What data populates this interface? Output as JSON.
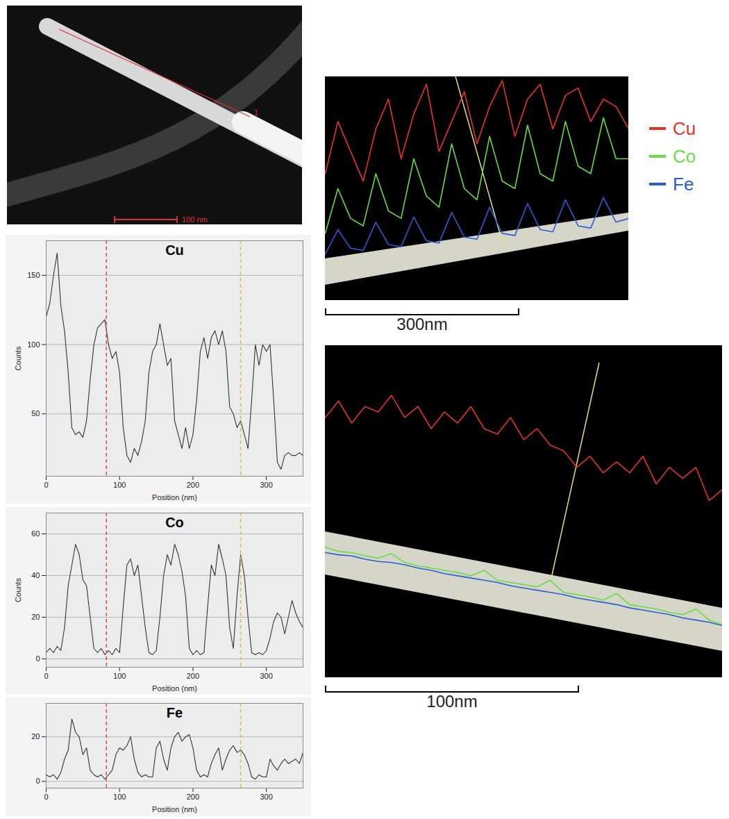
{
  "chart_data": [
    {
      "type": "line",
      "title": "Cu",
      "x_label": "Position (nm)",
      "y_label": "Counts",
      "color": "#333333",
      "x": [
        0,
        5,
        10,
        15,
        20,
        25,
        30,
        35,
        40,
        45,
        50,
        55,
        60,
        65,
        70,
        75,
        80,
        85,
        90,
        95,
        100,
        105,
        110,
        115,
        120,
        125,
        130,
        135,
        140,
        145,
        150,
        155,
        160,
        165,
        170,
        175,
        180,
        185,
        190,
        195,
        200,
        205,
        210,
        215,
        220,
        225,
        230,
        235,
        240,
        245,
        250,
        255,
        260,
        265,
        270,
        275,
        280,
        285,
        290,
        295,
        300,
        305,
        310,
        315,
        320,
        325,
        330,
        335,
        340,
        345,
        350
      ],
      "values": [
        120,
        130,
        150,
        166,
        128,
        110,
        80,
        40,
        35,
        37,
        33,
        45,
        75,
        100,
        112,
        115,
        118,
        100,
        90,
        95,
        80,
        40,
        20,
        15,
        25,
        20,
        30,
        45,
        80,
        95,
        100,
        115,
        100,
        85,
        90,
        45,
        35,
        25,
        40,
        25,
        35,
        60,
        95,
        105,
        90,
        105,
        110,
        100,
        110,
        95,
        55,
        50,
        40,
        45,
        35,
        25,
        60,
        100,
        85,
        100,
        95,
        100,
        60,
        15,
        10,
        20,
        22,
        20,
        20,
        22,
        20
      ],
      "xlim": [
        0,
        350
      ],
      "xticks": [
        0,
        100,
        200,
        300
      ],
      "ylim": [
        5,
        175
      ],
      "yticks": [
        50,
        100,
        150
      ],
      "grid": true,
      "vlines": [
        {
          "x": 82,
          "color": "#e0443c",
          "line_style": "dashed"
        },
        {
          "x": 265,
          "color": "#e8b830",
          "line_style": "dashed"
        }
      ]
    },
    {
      "type": "line",
      "title": "Co",
      "x_label": "Position (nm)",
      "y_label": "Counts",
      "color": "#333333",
      "x": [
        0,
        5,
        10,
        15,
        20,
        25,
        30,
        35,
        40,
        45,
        50,
        55,
        60,
        65,
        70,
        75,
        80,
        85,
        90,
        95,
        100,
        105,
        110,
        115,
        120,
        125,
        130,
        135,
        140,
        145,
        150,
        155,
        160,
        165,
        170,
        175,
        180,
        185,
        190,
        195,
        200,
        205,
        210,
        215,
        220,
        225,
        230,
        235,
        240,
        245,
        250,
        255,
        260,
        265,
        270,
        275,
        280,
        285,
        290,
        295,
        300,
        305,
        310,
        315,
        320,
        325,
        330,
        335,
        340,
        345,
        350
      ],
      "values": [
        3,
        5,
        3,
        6,
        4,
        15,
        35,
        45,
        55,
        50,
        38,
        35,
        20,
        5,
        3,
        5,
        2,
        4,
        2,
        5,
        3,
        25,
        45,
        48,
        40,
        45,
        30,
        15,
        3,
        2,
        4,
        20,
        40,
        50,
        45,
        55,
        50,
        42,
        30,
        5,
        2,
        4,
        2,
        3,
        25,
        45,
        40,
        55,
        48,
        40,
        15,
        5,
        30,
        50,
        40,
        20,
        3,
        2,
        3,
        2,
        4,
        10,
        18,
        22,
        20,
        12,
        20,
        28,
        22,
        18,
        15
      ],
      "xlim": [
        0,
        350
      ],
      "xticks": [
        0,
        100,
        200,
        300
      ],
      "ylim": [
        -4,
        70
      ],
      "yticks": [
        0,
        20,
        40,
        60
      ],
      "grid": true,
      "vlines": [
        {
          "x": 82,
          "color": "#e0443c",
          "line_style": "dashed"
        },
        {
          "x": 265,
          "color": "#e8b830",
          "line_style": "dashed"
        }
      ]
    },
    {
      "type": "line",
      "title": "Fe",
      "x_label": "Position (nm)",
      "color": "#333333",
      "x": [
        0,
        5,
        10,
        15,
        20,
        25,
        30,
        35,
        40,
        45,
        50,
        55,
        60,
        65,
        70,
        75,
        80,
        85,
        90,
        95,
        100,
        105,
        110,
        115,
        120,
        125,
        130,
        135,
        140,
        145,
        150,
        155,
        160,
        165,
        170,
        175,
        180,
        185,
        190,
        195,
        200,
        205,
        210,
        215,
        220,
        225,
        230,
        235,
        240,
        245,
        250,
        255,
        260,
        265,
        270,
        275,
        280,
        285,
        290,
        295,
        300,
        305,
        310,
        315,
        320,
        325,
        330,
        335,
        340,
        345,
        350
      ],
      "values": [
        3,
        2,
        3,
        1,
        4,
        10,
        14,
        28,
        22,
        20,
        12,
        15,
        5,
        3,
        2,
        3,
        1,
        3,
        5,
        12,
        15,
        14,
        16,
        20,
        10,
        4,
        2,
        3,
        2,
        2,
        15,
        18,
        10,
        5,
        15,
        20,
        22,
        18,
        20,
        21,
        15,
        5,
        2,
        3,
        2,
        8,
        12,
        15,
        5,
        10,
        14,
        16,
        13,
        14,
        12,
        8,
        2,
        1,
        3,
        2,
        2,
        10,
        7,
        5,
        8,
        10,
        8,
        9,
        10,
        8,
        13
      ],
      "xlim": [
        0,
        350
      ],
      "xticks": [
        0,
        100,
        200,
        300
      ],
      "ylim": [
        -3,
        35
      ],
      "yticks": [
        0,
        20
      ],
      "grid": true,
      "vlines": [
        {
          "x": 82,
          "color": "#e0443c",
          "line_style": "dashed"
        },
        {
          "x": 265,
          "color": "#e8b830",
          "line_style": "dashed"
        }
      ]
    },
    {
      "type": "line",
      "scale_bar": "300nm",
      "tick_labels": false,
      "legend": "right",
      "x": [
        0,
        1,
        2,
        3,
        4,
        5,
        6,
        7,
        8,
        9,
        10,
        11,
        12,
        13,
        14,
        15,
        16,
        17,
        18,
        19,
        20,
        21,
        22,
        23,
        24
      ],
      "xlim": [
        0,
        24
      ],
      "ylim": [
        0,
        300
      ],
      "series": [
        {
          "name": "Cu",
          "color": "#e8322a",
          "values": [
            170,
            240,
            200,
            160,
            230,
            270,
            190,
            250,
            290,
            200,
            240,
            280,
            210,
            260,
            295,
            220,
            270,
            290,
            230,
            275,
            285,
            240,
            270,
            260,
            230
          ]
        },
        {
          "name": "Co",
          "color": "#66dd44",
          "values": [
            90,
            150,
            110,
            100,
            170,
            120,
            110,
            190,
            140,
            125,
            210,
            150,
            135,
            220,
            160,
            150,
            235,
            170,
            160,
            240,
            180,
            170,
            245,
            190,
            190
          ]
        },
        {
          "name": "Fe",
          "color": "#2a5cd6",
          "values": [
            62,
            95,
            70,
            67,
            105,
            75,
            72,
            112,
            80,
            77,
            118,
            85,
            82,
            125,
            90,
            87,
            130,
            95,
            92,
            135,
            100,
            97,
            138,
            105,
            110
          ]
        }
      ]
    },
    {
      "type": "line",
      "scale_bar": "100nm",
      "tick_labels": false,
      "x": [
        0,
        1,
        2,
        3,
        4,
        5,
        6,
        7,
        8,
        9,
        10,
        11,
        12,
        13,
        14,
        15,
        16,
        17,
        18,
        19,
        20,
        21,
        22,
        23,
        24,
        25,
        26,
        27,
        28,
        29,
        30
      ],
      "xlim": [
        0,
        30
      ],
      "ylim": [
        0,
        300
      ],
      "series": [
        {
          "name": "Cu",
          "color": "#e8322a",
          "values": [
            235,
            250,
            230,
            245,
            240,
            255,
            235,
            245,
            225,
            240,
            230,
            245,
            225,
            220,
            235,
            215,
            225,
            210,
            205,
            190,
            200,
            185,
            195,
            185,
            200,
            175,
            190,
            180,
            190,
            160,
            170
          ]
        },
        {
          "name": "Co",
          "color": "#66dd44",
          "values": [
            118,
            114,
            113,
            110,
            108,
            112,
            104,
            101,
            99,
            97,
            95,
            92,
            97,
            88,
            86,
            84,
            82,
            88,
            77,
            75,
            73,
            70,
            76,
            66,
            64,
            62,
            59,
            57,
            62,
            52,
            48
          ]
        },
        {
          "name": "Fe",
          "color": "#2a5cd6",
          "values": [
            113,
            111,
            110,
            107,
            105,
            104,
            102,
            99,
            97,
            94,
            92,
            90,
            88,
            86,
            83,
            81,
            79,
            77,
            75,
            72,
            70,
            68,
            66,
            63,
            61,
            59,
            57,
            54,
            52,
            50,
            47
          ]
        }
      ]
    }
  ],
  "images": [
    {
      "scale_bar": "100 nm",
      "line_label": "1"
    }
  ]
}
